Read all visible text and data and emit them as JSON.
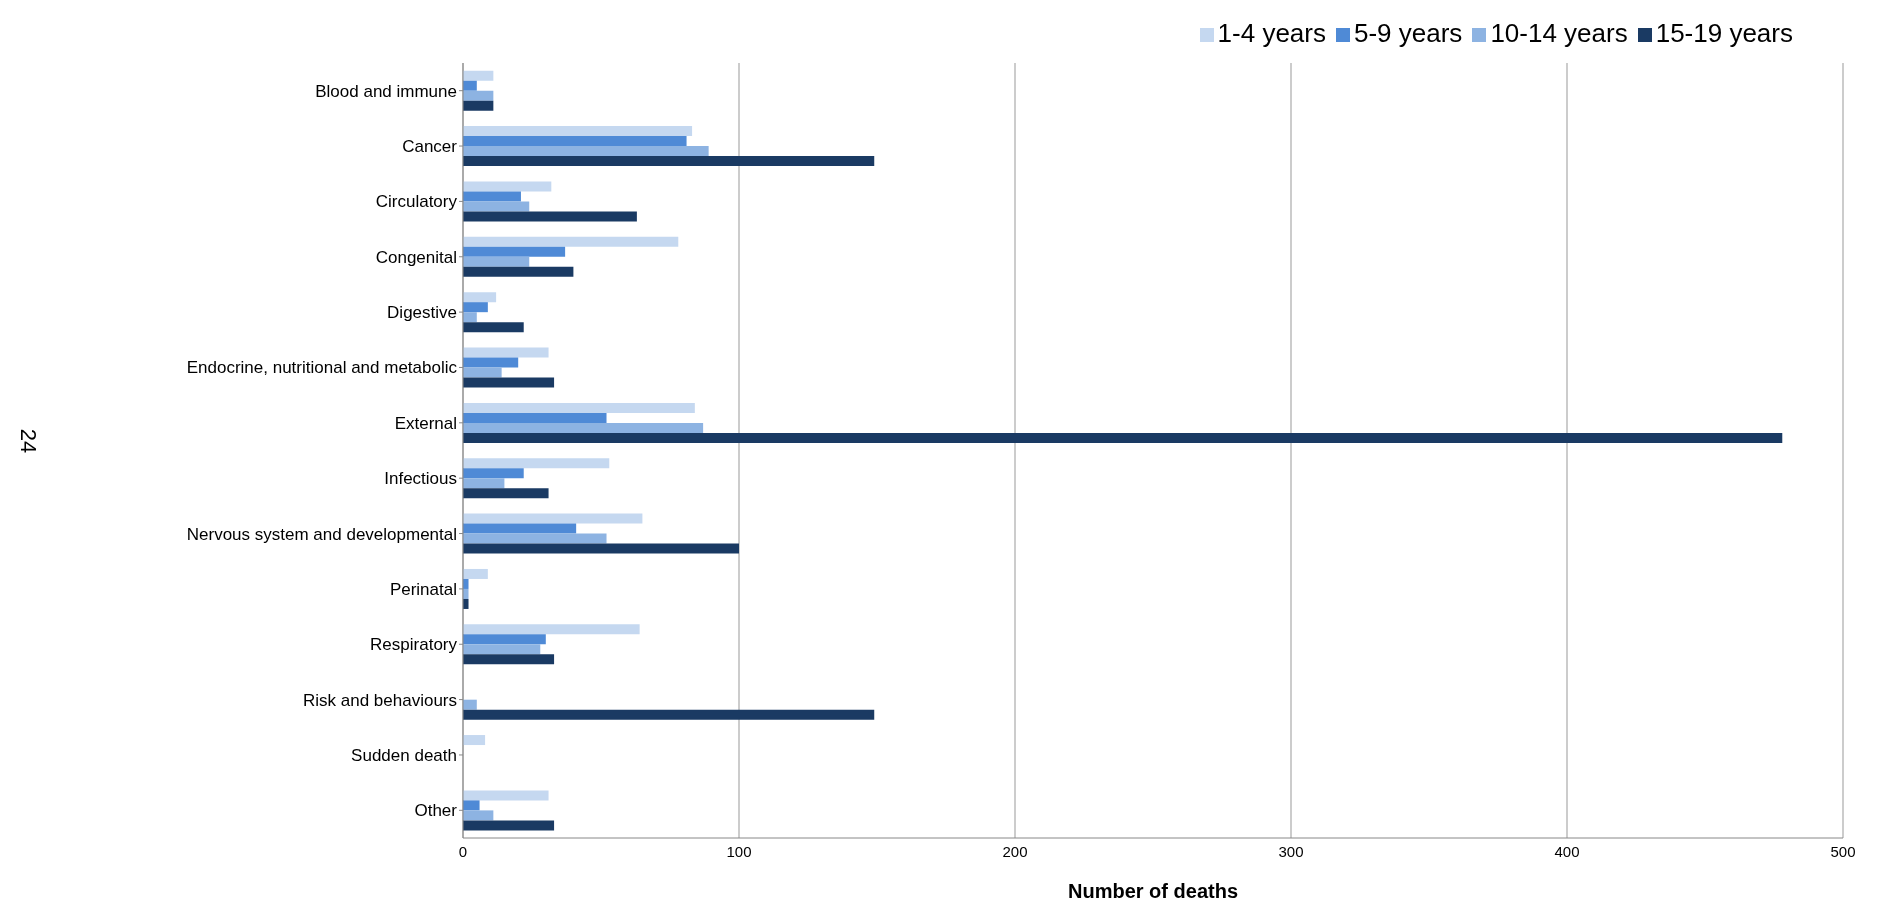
{
  "chart_data": {
    "type": "bar",
    "orientation": "horizontal",
    "xlabel": "Number of deaths",
    "annotations": [
      "24"
    ],
    "categories": [
      "Blood and immune",
      "Cancer",
      "Circulatory",
      "Congenital",
      "Digestive",
      "Endocrine, nutritional and metabolic",
      "External",
      "Infectious",
      "Nervous system and developmental",
      "Perinatal",
      "Respiratory",
      "Risk and behaviours",
      "Sudden death",
      "Other"
    ],
    "series": [
      {
        "name": "1-4 years",
        "color": "#c5d8f0",
        "values": [
          11,
          83,
          32,
          78,
          12,
          31,
          84,
          53,
          65,
          9,
          64,
          null,
          8,
          31
        ]
      },
      {
        "name": "5-9 years",
        "color": "#4f8ad6",
        "values": [
          5,
          81,
          21,
          37,
          9,
          20,
          52,
          22,
          41,
          2,
          30,
          null,
          null,
          6
        ]
      },
      {
        "name": "10-14 years",
        "color": "#8db3e2",
        "values": [
          11,
          89,
          24,
          24,
          5,
          14,
          87,
          15,
          52,
          2,
          28,
          5,
          null,
          11
        ]
      },
      {
        "name": "15-19 years",
        "color": "#1a3a63",
        "values": [
          11,
          149,
          63,
          40,
          22,
          33,
          478,
          31,
          100,
          2,
          33,
          149,
          null,
          33
        ]
      }
    ],
    "xlim": [
      0,
      500
    ],
    "xticks": [
      0,
      100,
      200,
      300,
      400,
      500
    ],
    "grid": "x",
    "legend": "top right"
  }
}
